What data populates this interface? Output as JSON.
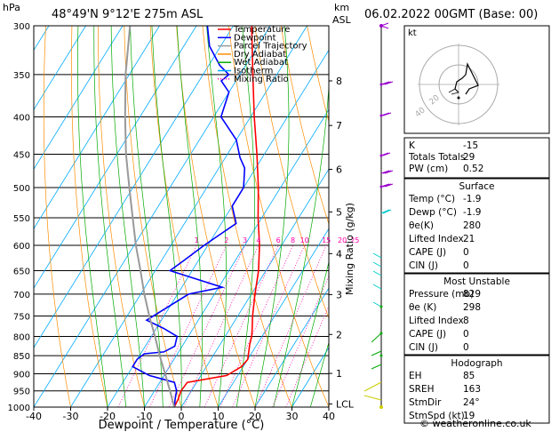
{
  "header": {
    "location": "48°49'N  9°12'E  275m  ASL",
    "datetime": "06.02.2022  00GMT  (Base: 00)",
    "hpa_unit": "hPa",
    "km_unit": "km",
    "asl_unit": "ASL"
  },
  "legend": [
    {
      "label": "Temperature",
      "color": "#ff0000"
    },
    {
      "label": "Dewpoint",
      "color": "#0000ff"
    },
    {
      "label": "Parcel Trajectory",
      "color": "#999999"
    },
    {
      "label": "Dry Adiabat",
      "color": "#ff8c00"
    },
    {
      "label": "Wet Adiabat",
      "color": "#00aa00"
    },
    {
      "label": "Isotherm",
      "color": "#00aaff"
    },
    {
      "label": "Mixing Ratio",
      "color": "#ff00aa"
    }
  ],
  "chart_data": {
    "type": "line",
    "xlabel": "Dewpoint / Temperature (°C)",
    "ylabel": "hPa",
    "xlim": [
      -40,
      40
    ],
    "ylim": [
      1000,
      300
    ],
    "pressure_ticks": [
      300,
      350,
      400,
      450,
      500,
      550,
      600,
      650,
      700,
      750,
      800,
      850,
      900,
      950,
      1000
    ],
    "temp_ticks": [
      -40,
      -30,
      -20,
      -10,
      0,
      10,
      20,
      30,
      40
    ],
    "km_ticks": [
      {
        "label": "8",
        "p": 357
      },
      {
        "label": "7",
        "p": 411
      },
      {
        "label": "6",
        "p": 472
      },
      {
        "label": "5",
        "p": 540
      },
      {
        "label": "4",
        "p": 616
      },
      {
        "label": "3",
        "p": 701
      },
      {
        "label": "2",
        "p": 795
      },
      {
        "label": "1",
        "p": 899
      },
      {
        "label": "LCL",
        "p": 990
      }
    ],
    "mixing_ratio_axis_label": "Mixing Ratio (g/kg)",
    "mixing_ratio_labels": [
      "1",
      "2",
      "3",
      "4",
      "6",
      "8",
      "10",
      "15",
      "20",
      "25"
    ],
    "series": [
      {
        "name": "Temperature",
        "color": "#ff0000",
        "points": [
          [
            1000,
            -1.9
          ],
          [
            975,
            -2.2
          ],
          [
            950,
            -2.8
          ],
          [
            925,
            -2.5
          ],
          [
            905,
            7.0
          ],
          [
            880,
            9.5
          ],
          [
            860,
            10.0
          ],
          [
            840,
            9.0
          ],
          [
            820,
            8.0
          ],
          [
            800,
            7.2
          ],
          [
            780,
            6.0
          ],
          [
            750,
            4.0
          ],
          [
            700,
            1.0
          ],
          [
            650,
            -2.0
          ],
          [
            600,
            -6.0
          ],
          [
            550,
            -11.0
          ],
          [
            500,
            -16.0
          ],
          [
            450,
            -22.0
          ],
          [
            400,
            -29.0
          ],
          [
            350,
            -36.5
          ],
          [
            300,
            -45.0
          ]
        ]
      },
      {
        "name": "Dewpoint",
        "color": "#0000ff",
        "points": [
          [
            1000,
            -1.9
          ],
          [
            975,
            -3.0
          ],
          [
            950,
            -4.0
          ],
          [
            925,
            -6.0
          ],
          [
            905,
            -14.0
          ],
          [
            880,
            -20.0
          ],
          [
            860,
            -20.0
          ],
          [
            845,
            -19.0
          ],
          [
            840,
            -14.0
          ],
          [
            825,
            -12.0
          ],
          [
            800,
            -13.0
          ],
          [
            780,
            -18.0
          ],
          [
            760,
            -24.0
          ],
          [
            700,
            -17.0
          ],
          [
            685,
            -9.0
          ],
          [
            650,
            -26.0
          ],
          [
            630,
            -24.0
          ],
          [
            600,
            -21.0
          ],
          [
            560,
            -16.0
          ],
          [
            530,
            -20.0
          ],
          [
            500,
            -20.0
          ],
          [
            470,
            -23.0
          ],
          [
            455,
            -26.0
          ],
          [
            430,
            -30.0
          ],
          [
            400,
            -38.0
          ],
          [
            370,
            -40.0
          ],
          [
            357,
            -44.0
          ],
          [
            350,
            -43.0
          ],
          [
            340,
            -47.0
          ],
          [
            320,
            -53.0
          ],
          [
            300,
            -57.0
          ]
        ]
      },
      {
        "name": "Parcel Trajectory",
        "color": "#999999",
        "points": [
          [
            1000,
            -1.9
          ],
          [
            950,
            -5.8
          ],
          [
            900,
            -10.0
          ],
          [
            850,
            -14.5
          ],
          [
            800,
            -19.0
          ],
          [
            750,
            -24.0
          ],
          [
            700,
            -29.0
          ],
          [
            650,
            -34.0
          ],
          [
            600,
            -39.5
          ],
          [
            550,
            -45.0
          ],
          [
            500,
            -51.0
          ],
          [
            450,
            -57.5
          ],
          [
            400,
            -64.0
          ],
          [
            350,
            -71.0
          ],
          [
            300,
            -78.0
          ]
        ]
      }
    ]
  },
  "hodograph": {
    "label": "kt",
    "ring_labels": [
      "20",
      "40"
    ]
  },
  "indices": {
    "k": {
      "label": "K",
      "value": "-15"
    },
    "tt": {
      "label": "Totals Totals",
      "value": "29"
    },
    "pw": {
      "label": "PW (cm)",
      "value": "0.52"
    }
  },
  "surface": {
    "title": "Surface",
    "rows": [
      {
        "label": "Temp (°C)",
        "value": "-1.9"
      },
      {
        "label": "Dewp (°C)",
        "value": "-1.9"
      },
      {
        "label": "θe(K)",
        "value": "280"
      },
      {
        "label": "Lifted Index",
        "value": "21"
      },
      {
        "label": "CAPE (J)",
        "value": "0"
      },
      {
        "label": "CIN (J)",
        "value": "0"
      }
    ]
  },
  "most_unstable": {
    "title": "Most Unstable",
    "rows": [
      {
        "label": "Pressure (mb)",
        "value": "829"
      },
      {
        "label": "θe (K)",
        "value": "298"
      },
      {
        "label": "Lifted Index",
        "value": "8"
      },
      {
        "label": "CAPE (J)",
        "value": "0"
      },
      {
        "label": "CIN (J)",
        "value": "0"
      }
    ]
  },
  "hodograph_panel": {
    "title": "Hodograph",
    "rows": [
      {
        "label": "EH",
        "value": "85"
      },
      {
        "label": "SREH",
        "value": "163"
      },
      {
        "label": "StmDir",
        "value": "24°"
      },
      {
        "label": "StmSpd (kt)",
        "value": "19"
      }
    ]
  },
  "footer": {
    "copyright": "© weatheronline.co.uk"
  }
}
